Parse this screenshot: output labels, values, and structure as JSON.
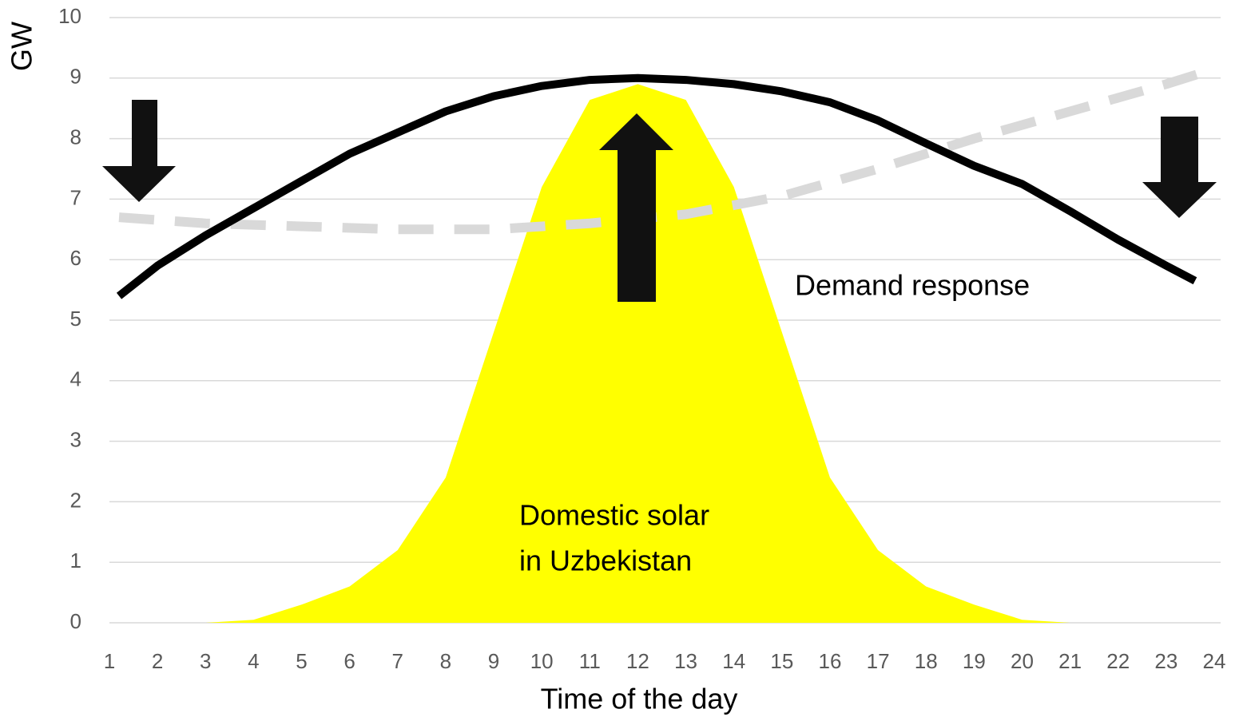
{
  "chart_data": {
    "type": "line",
    "x_label": "Time of the day",
    "y_label": "GW",
    "annotations": [
      "Demand response",
      "Domestic solar",
      "in Uzbekistan"
    ],
    "xlim": [
      1,
      24
    ],
    "xticks": [
      1,
      2,
      3,
      4,
      5,
      6,
      7,
      8,
      9,
      10,
      11,
      12,
      13,
      14,
      15,
      16,
      17,
      18,
      19,
      20,
      21,
      22,
      23,
      24
    ],
    "ylim": [
      0,
      10
    ],
    "yticks": [
      0,
      1,
      2,
      3,
      4,
      5,
      6,
      7,
      8,
      9,
      10
    ],
    "grid": true,
    "series": [
      {
        "style": "area",
        "color": "#ffff00",
        "x": [
          1,
          2,
          3,
          4,
          5,
          6,
          7,
          8,
          9,
          10,
          11,
          12,
          13,
          14,
          15,
          16,
          17,
          18,
          19,
          20,
          21,
          22,
          23,
          24
        ],
        "values": [
          0,
          0,
          0,
          0.05,
          0.3,
          0.6,
          1.2,
          2.4,
          4.8,
          7.2,
          8.64,
          8.9,
          8.64,
          7.2,
          4.8,
          2.4,
          1.2,
          0.6,
          0.3,
          0.05,
          0,
          0,
          0,
          0
        ]
      },
      {
        "style": "dashed",
        "color": "#d9d9d9",
        "x": [
          1.2,
          3,
          5,
          7,
          9,
          11,
          13,
          15,
          17,
          19,
          21,
          23,
          24
        ],
        "values": [
          6.7,
          6.6,
          6.55,
          6.5,
          6.5,
          6.6,
          6.75,
          7.05,
          7.5,
          8.0,
          8.45,
          8.9,
          9.15
        ]
      },
      {
        "style": "solid",
        "color": "#000000",
        "x": [
          1.2,
          2,
          3,
          4,
          5,
          6,
          7,
          8,
          9,
          10,
          11,
          12,
          13,
          14,
          15,
          16,
          17,
          18,
          19,
          20,
          21,
          22,
          23,
          23.6
        ],
        "values": [
          5.4,
          5.9,
          6.4,
          6.85,
          7.3,
          7.75,
          8.1,
          8.45,
          8.7,
          8.87,
          8.97,
          9.0,
          8.97,
          8.9,
          8.78,
          8.6,
          8.3,
          7.92,
          7.55,
          7.25,
          6.8,
          6.33,
          5.9,
          5.65
        ]
      }
    ]
  }
}
